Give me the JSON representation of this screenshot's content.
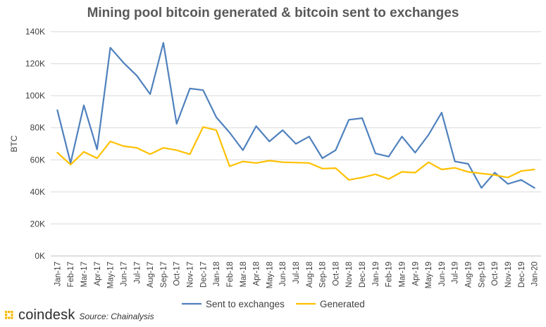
{
  "chart_data": {
    "type": "line",
    "title": "Mining pool bitcoin generated & bitcoin sent to exchanges",
    "ylabel": "BTC",
    "xlabel": "",
    "ylim": [
      0,
      140000
    ],
    "yticks": [
      0,
      20000,
      40000,
      60000,
      80000,
      100000,
      120000,
      140000
    ],
    "ytick_labels": [
      "0K",
      "20K",
      "40K",
      "60K",
      "80K",
      "100K",
      "120K",
      "140K"
    ],
    "grid": true,
    "legend_position": "bottom",
    "categories": [
      "Jan-17",
      "Feb-17",
      "Mar-17",
      "Apr-17",
      "May-17",
      "Jun-17",
      "Jul-17",
      "Aug-17",
      "Sep-17",
      "Oct-17",
      "Nov-17",
      "Dec-17",
      "Jan-18",
      "Feb-18",
      "Mar-18",
      "Apr-18",
      "May-18",
      "Jun-18",
      "Jul-18",
      "Aug-18",
      "Sep-18",
      "Oct-18",
      "Nov-18",
      "Dec-18",
      "Jan-19",
      "Feb-19",
      "Mar-19",
      "Apr-19",
      "May-19",
      "Jun-19",
      "Jul-19",
      "Aug-19",
      "Sep-19",
      "Oct-19",
      "Nov-19",
      "Dec-19",
      "Jan-20"
    ],
    "series": [
      {
        "name": "Sent to exchanges",
        "color": "#4f81bd",
        "values": [
          91000,
          58000,
          94000,
          66500,
          130000,
          120500,
          112500,
          101000,
          133000,
          82500,
          104500,
          103500,
          86500,
          77000,
          66000,
          81000,
          71500,
          78500,
          70000,
          74500,
          61000,
          66000,
          85000,
          86000,
          64000,
          62000,
          74500,
          64500,
          75500,
          89500,
          59000,
          57500,
          42500,
          52000,
          45000,
          47500,
          42500
        ]
      },
      {
        "name": "Generated",
        "color": "#ffc000",
        "values": [
          64500,
          57000,
          65000,
          61000,
          71500,
          68500,
          67500,
          63500,
          67500,
          66000,
          63500,
          80500,
          78500,
          56000,
          59000,
          58000,
          59500,
          58500,
          58300,
          58000,
          54500,
          54800,
          47500,
          49000,
          51000,
          48000,
          52500,
          52000,
          58500,
          54000,
          55000,
          52500,
          51500,
          50500,
          49000,
          53000,
          54000
        ]
      }
    ]
  },
  "footer": {
    "brand": "coindesk",
    "source": "Source: Chainalysis"
  },
  "colors": {
    "logo": "#f5b800",
    "grid": "#d9d9d9"
  },
  "icons": {
    "logo": "coindesk-logo-icon"
  }
}
